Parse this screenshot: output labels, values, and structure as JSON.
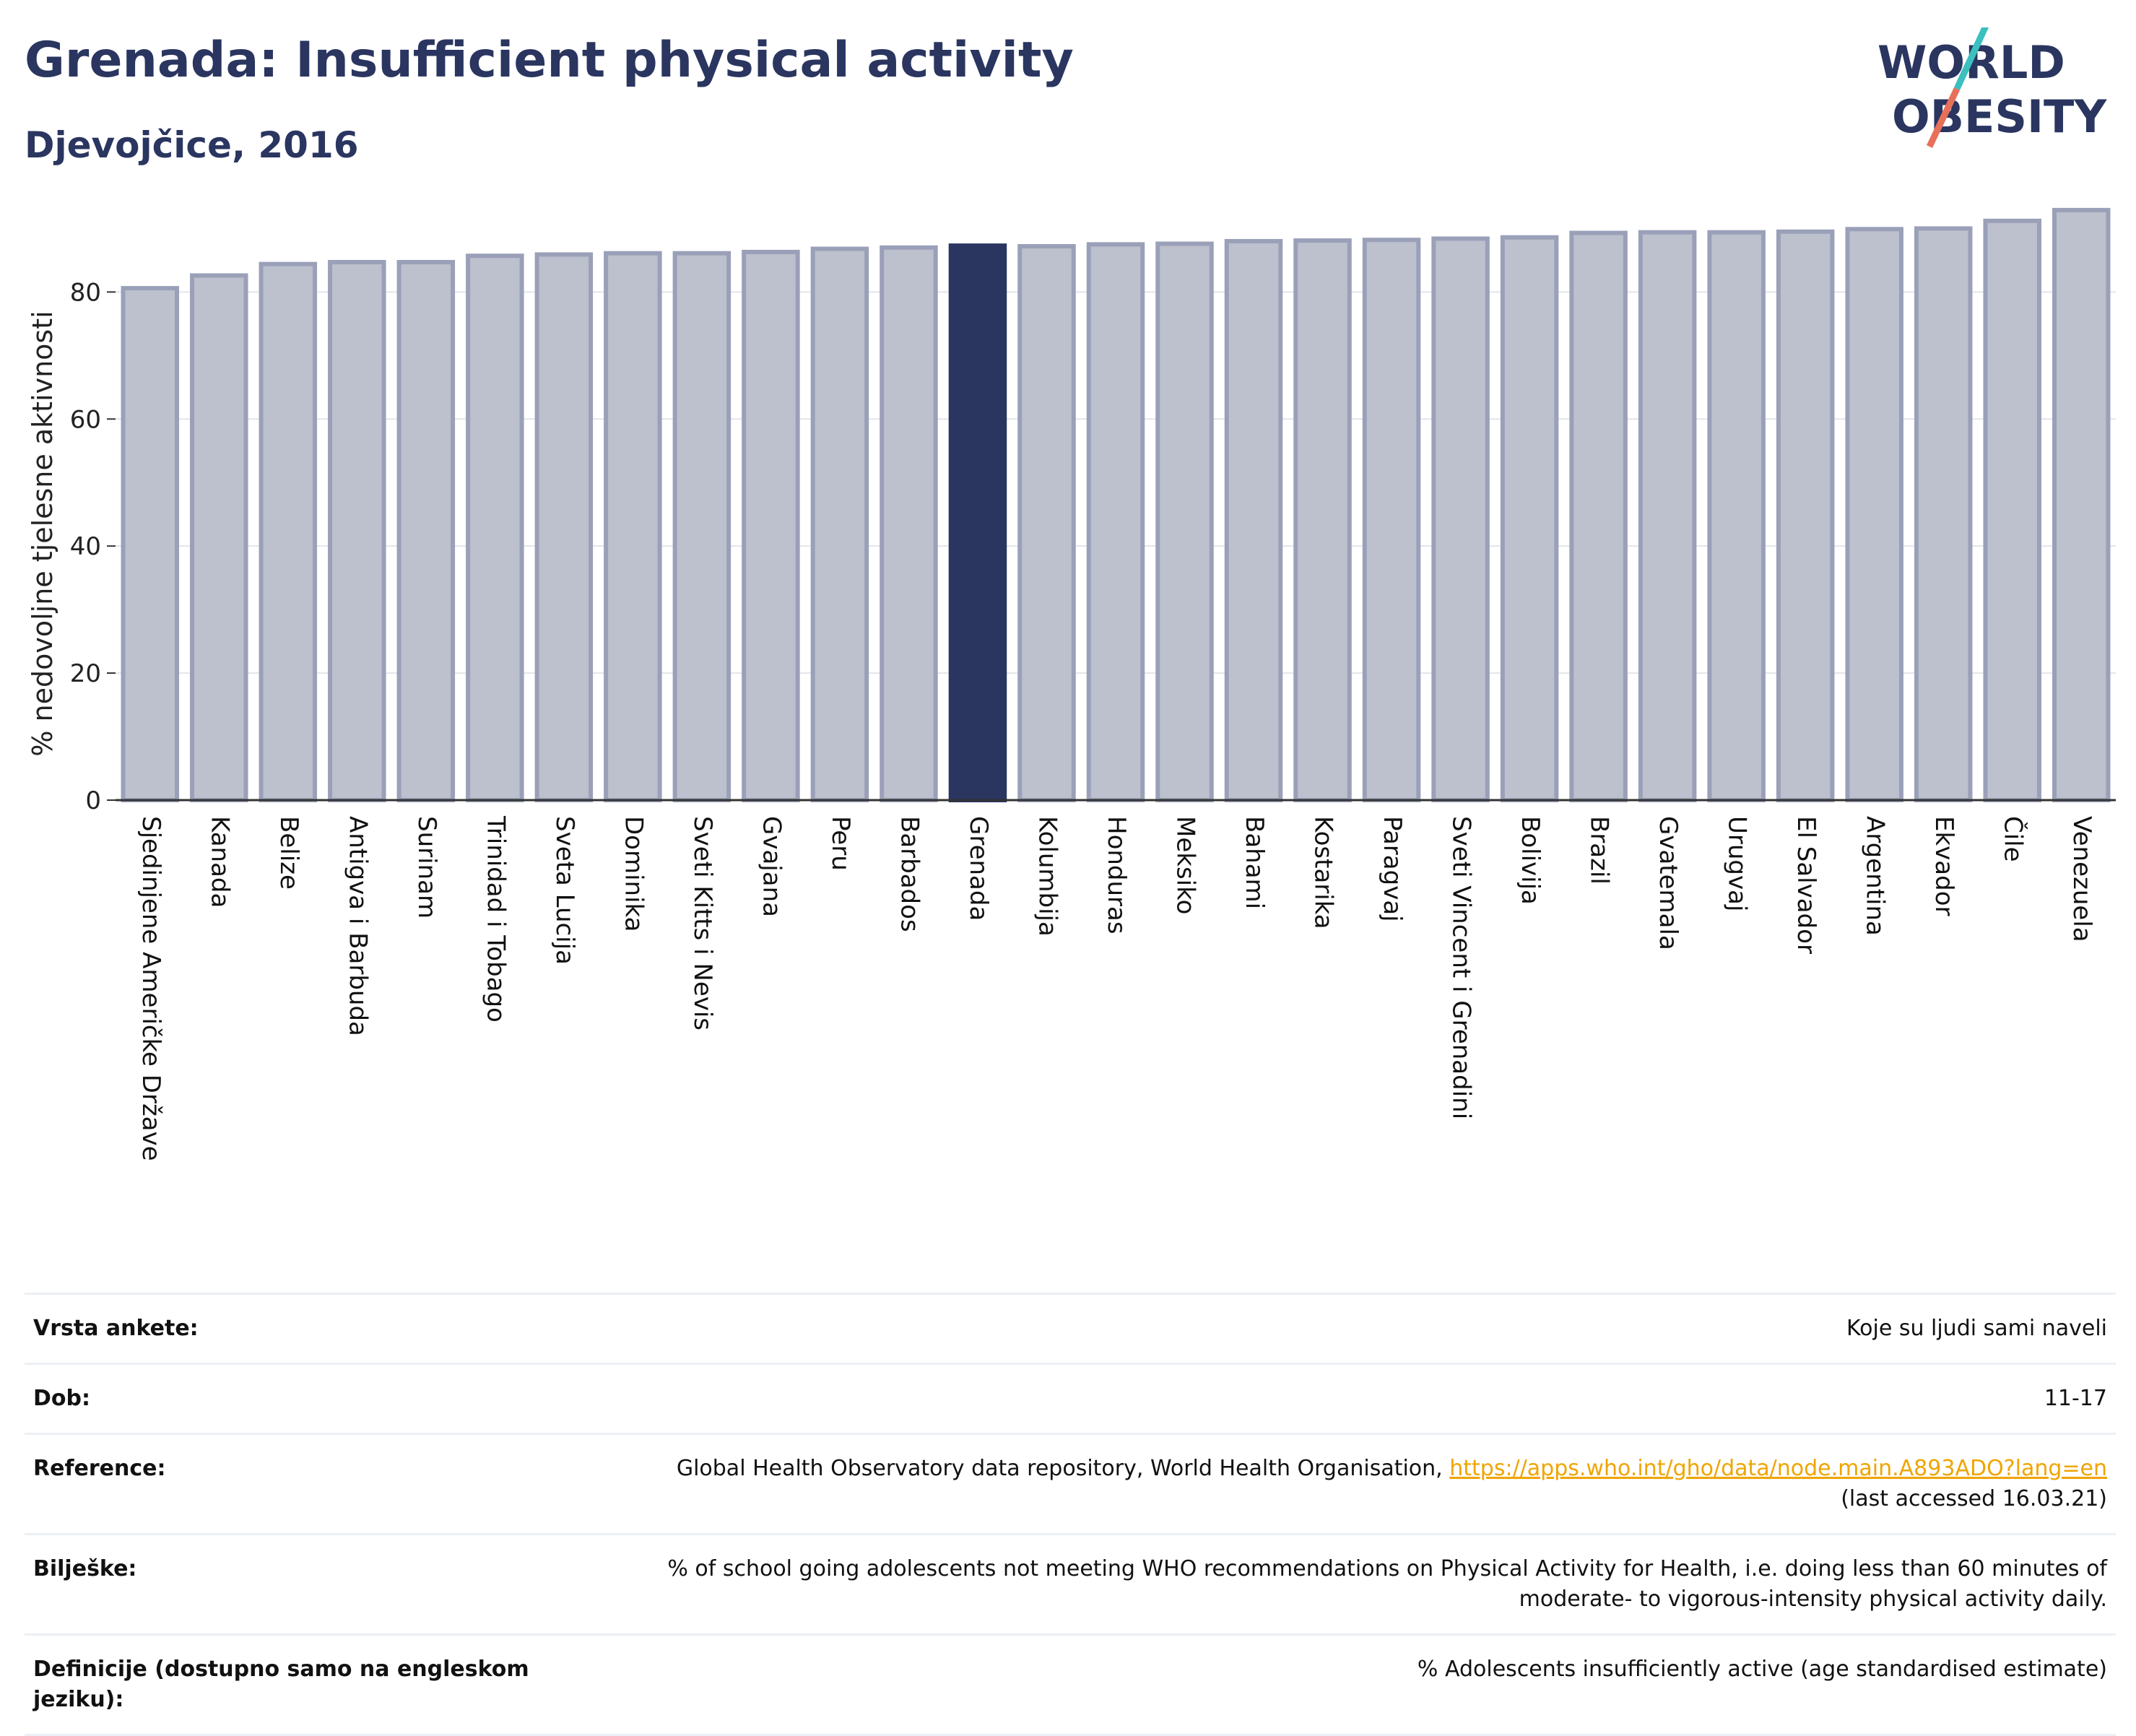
{
  "header": {
    "title": "Grenada: Insufficient physical activity",
    "subtitle": "Djevojčice, 2016"
  },
  "logo": {
    "line1": "WORLD",
    "line2": "OBESITY",
    "slash_color_top": "#3bbfbf",
    "slash_color_bottom": "#e8705a"
  },
  "colors": {
    "bar": "#bdc0cd",
    "bar_stroke": "#9aa0b8",
    "highlight": "#2a3560",
    "text": "#2a3560"
  },
  "chart_data": {
    "type": "bar",
    "ylabel": "% nedovoljne tjelesne aktivnosti",
    "ylim": [
      0,
      93
    ],
    "yticks": [
      0,
      20,
      40,
      60,
      80
    ],
    "grid": true,
    "highlight": "Grenada",
    "categories": [
      "Sjedinjene Američke Države",
      "Kanada",
      "Belize",
      "Antigva i Barbuda",
      "Surinam",
      "Trinidad i Tobago",
      "Sveta Lucija",
      "Dominika",
      "Sveti Kitts i Nevis",
      "Gvajana",
      "Peru",
      "Barbados",
      "Grenada",
      "Kolumbija",
      "Honduras",
      "Meksiko",
      "Bahami",
      "Kostarika",
      "Paragvaj",
      "Sveti Vincent i Grenadini",
      "Bolivija",
      "Brazil",
      "Gvatemala",
      "Urugvaj",
      "El Salvador",
      "Argentina",
      "Ekvador",
      "Čile",
      "Venezuela"
    ],
    "values": [
      80.6,
      82.6,
      84.4,
      84.7,
      84.7,
      85.7,
      85.9,
      86.1,
      86.1,
      86.3,
      86.8,
      87.0,
      87.3,
      87.2,
      87.5,
      87.6,
      88.0,
      88.1,
      88.2,
      88.4,
      88.6,
      89.3,
      89.4,
      89.4,
      89.5,
      89.9,
      90.0,
      91.2,
      92.9
    ]
  },
  "info": {
    "rows": [
      {
        "key": "Vrsta ankete:",
        "value": "Koje su ljudi sami naveli"
      },
      {
        "key": "Dob:",
        "value": "11-17"
      },
      {
        "key": "Reference:",
        "value": "Global Health Observatory data repository, World Health Organisation,",
        "link": "https://apps.who.int/gho/data/node.main.A893ADO?lang=en",
        "value2": "(last accessed 16.03.21)"
      },
      {
        "key": "Bilješke:",
        "value": "% of school going adolescents not meeting WHO recommendations on Physical Activity for Health, i.e. doing less than 60 minutes of",
        "value2": "moderate- to vigorous-intensity physical activity daily."
      },
      {
        "key": "Definicije (dostupno samo na engleskom jeziku):",
        "value": "% Adolescents insufficiently active (age standardised estimate)"
      }
    ]
  }
}
